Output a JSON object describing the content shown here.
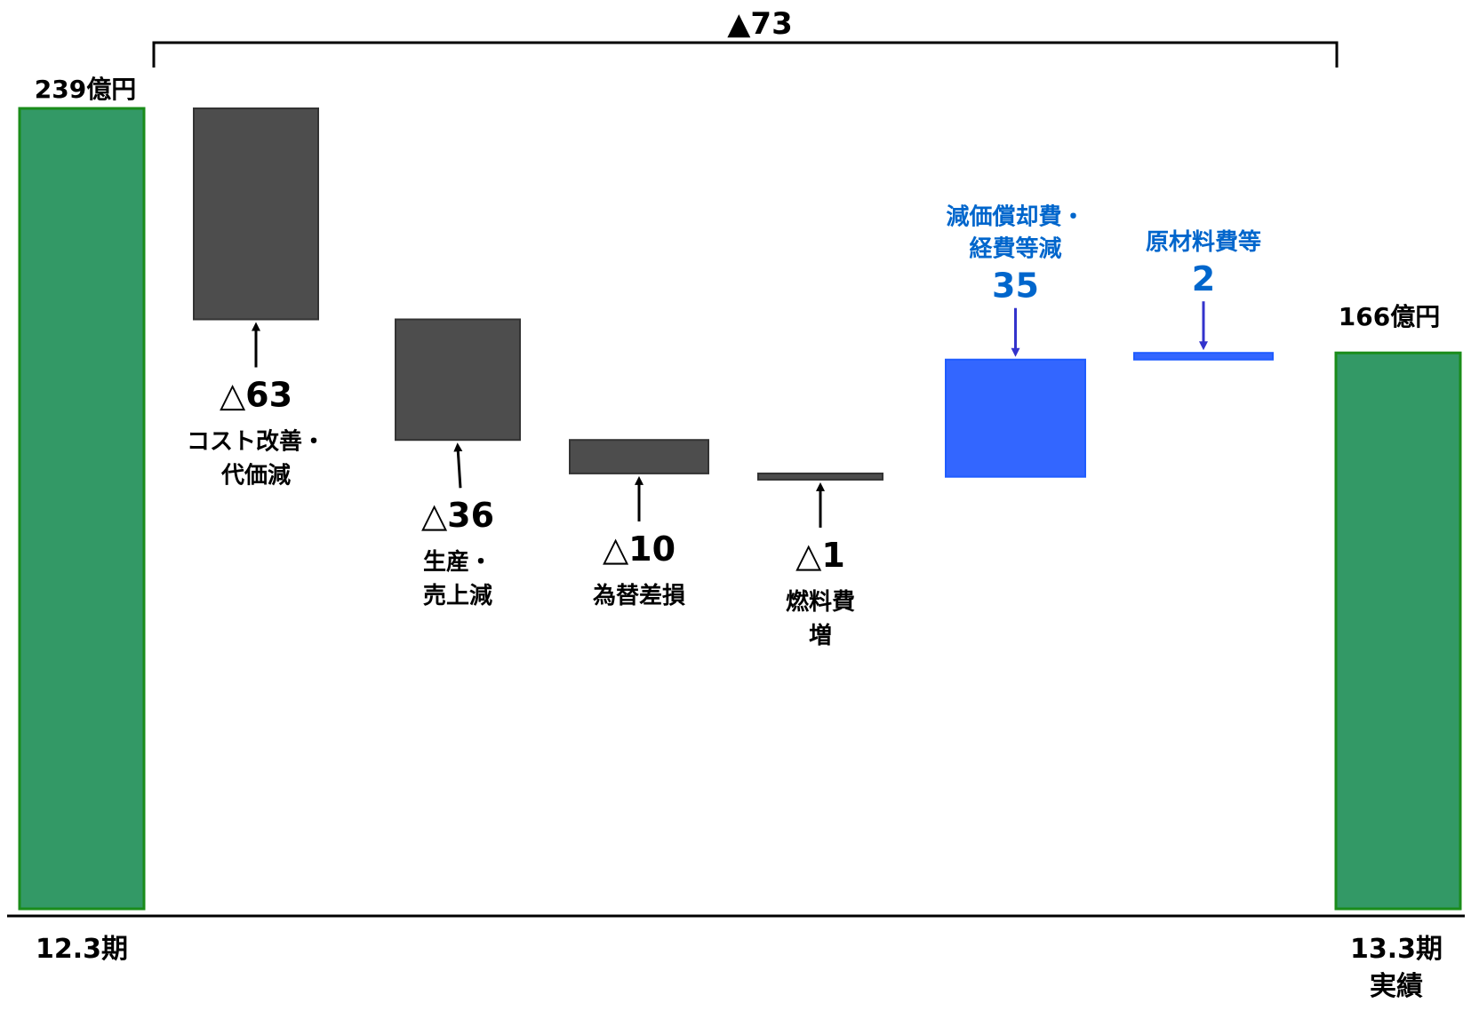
{
  "chart_data": {
    "type": "waterfall",
    "title": "",
    "xlabel": "",
    "ylabel": "",
    "unit_label": "億円",
    "start": {
      "category": [
        "12.3期"
      ],
      "value": 239,
      "label": "239億円"
    },
    "end": {
      "category": [
        "13.3期",
        "実績"
      ],
      "value": 166,
      "label": "166億円"
    },
    "total_change": {
      "value": -73,
      "label": "▲73"
    },
    "steps": [
      {
        "value": -63,
        "value_label": "△63",
        "name_lines": [
          "コスト改善・",
          "代価減"
        ],
        "color": "#4d4d4d"
      },
      {
        "value": -36,
        "value_label": "△36",
        "name_lines": [
          "生産・",
          "売上減"
        ],
        "color": "#4d4d4d"
      },
      {
        "value": -10,
        "value_label": "△10",
        "name_lines": [
          "為替差損"
        ],
        "color": "#4d4d4d"
      },
      {
        "value": -1,
        "value_label": "△1",
        "name_lines": [
          "燃料費",
          "増"
        ],
        "color": "#4d4d4d"
      },
      {
        "value": 35,
        "value_label": "35",
        "name_lines": [
          "減価償却費・",
          "経費等減"
        ],
        "color": "#3366ff"
      },
      {
        "value": 2,
        "value_label": "2",
        "name_lines": [
          "原材料費等"
        ],
        "color": "#3366ff"
      }
    ],
    "colors": {
      "total_fill": "#339966",
      "total_border": "#1a8c1a",
      "decrease": "#4d4d4d",
      "increase": "#3366ff",
      "increase_border": "#1f5cff",
      "increase_text": "#0066cc",
      "increase_arrow": "#3333cc",
      "text": "#000000"
    }
  }
}
